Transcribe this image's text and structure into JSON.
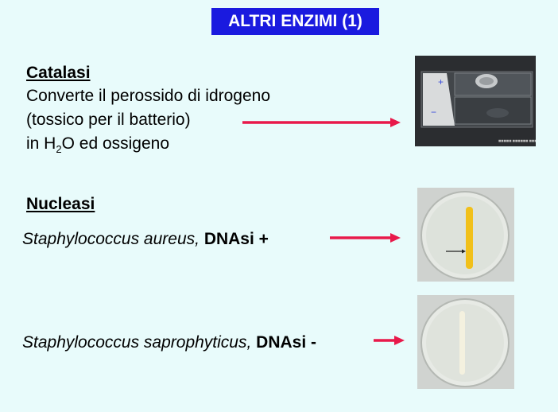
{
  "slide": {
    "title": "ALTRI ENZIMI (1)"
  },
  "catalase": {
    "heading": "Catalasi",
    "line1": "Converte il perossido di idrogeno",
    "line2": "(tossico per il batterio)",
    "line3_pre": "in H",
    "line3_sub": "2",
    "line3_post": "O ed ossigeno",
    "slide_plus": "+",
    "slide_minus": "−"
  },
  "nuclease": {
    "heading": "Nucleasi",
    "aureus_species": "Staphylococcus aureus,",
    "aureus_result": "DNAsi +",
    "sapro_species": "Staphylococcus saprophyticus,",
    "sapro_result": "DNAsi -"
  },
  "colors": {
    "title_bg": "#1a1adf",
    "arrow": "#e8194a",
    "background": "#e8fbfb"
  }
}
